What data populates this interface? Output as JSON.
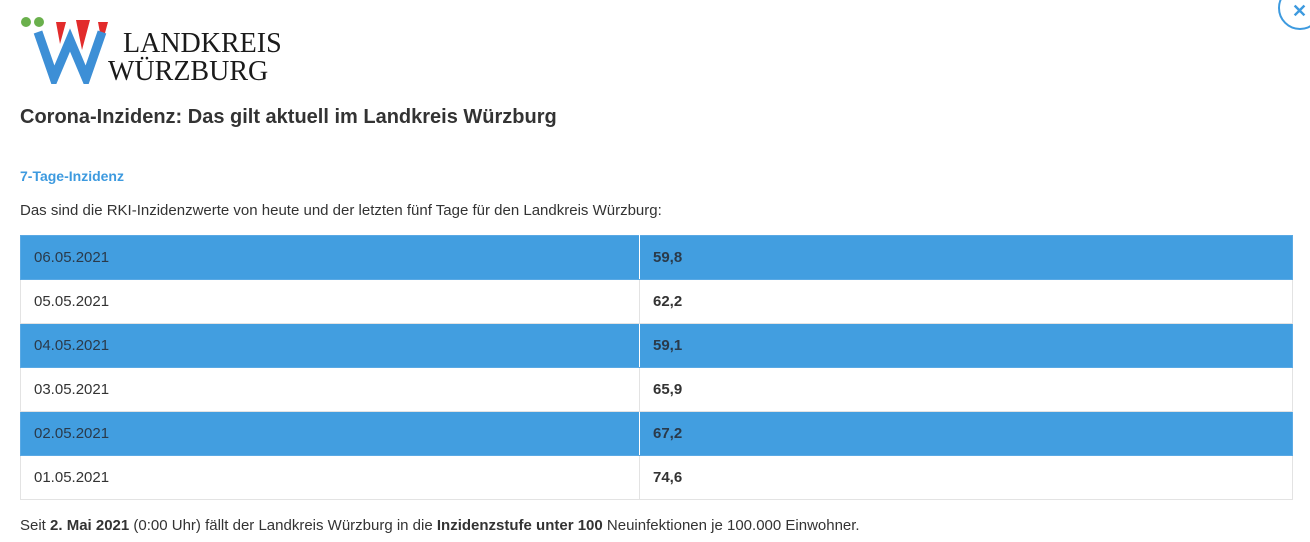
{
  "logo": {
    "line1": "LANDKREIS",
    "line2": "WÜRZBURG",
    "colors": {
      "blue": "#3d8fd6",
      "red": "#e22b2b",
      "green": "#6ab04c"
    }
  },
  "close_button": {
    "icon": "close-icon",
    "glyph": "✕"
  },
  "page_title": "Corona-Inzidenz: Das gilt aktuell im Landkreis Würzburg",
  "section_title": "7-Tage-Inzidenz",
  "intro": "Das sind die RKI-Inzidenzwerte von heute und der letzten fünf Tage für den Landkreis Würzburg:",
  "table": {
    "rows": [
      {
        "date": "06.05.2021",
        "value": "59,8",
        "highlighted": true
      },
      {
        "date": "05.05.2021",
        "value": "62,2",
        "highlighted": false
      },
      {
        "date": "04.05.2021",
        "value": "59,1",
        "highlighted": true
      },
      {
        "date": "03.05.2021",
        "value": "65,9",
        "highlighted": false
      },
      {
        "date": "02.05.2021",
        "value": "67,2",
        "highlighted": true
      },
      {
        "date": "01.05.2021",
        "value": "74,6",
        "highlighted": false
      }
    ]
  },
  "footer": {
    "part1": "Seit ",
    "date_bold": "2. Mai 2021",
    "part2": " (0:00 Uhr) fällt der Landkreis Würzburg in die ",
    "stufe_bold": "Inzidenzstufe unter 100",
    "part3": " Neuinfektionen je 100.000 Einwohner."
  },
  "colors": {
    "accent": "#3d9adf",
    "row_highlight": "#429ee0",
    "text": "#333333"
  }
}
